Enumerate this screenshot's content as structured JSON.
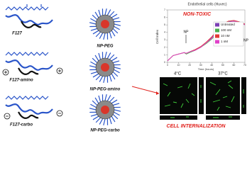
{
  "labels": {
    "polymers": [
      "F127",
      "F127-amino",
      "F127-carbo"
    ],
    "nanoparticles": [
      "NP-PEG",
      "NP-PEG-amino",
      "NP-PEG-carbo"
    ],
    "micro": {
      "temps": [
        "4°C",
        "37°C"
      ],
      "caption": "CELL INTERNALIZATION"
    }
  },
  "chart_data": {
    "type": "line",
    "title": "Endothelial cells (Huvec)",
    "x_label": "Time (hours)",
    "y_label": "Cell Index",
    "annotations": [
      "NON-TOXIC",
      "NP",
      "NP"
    ],
    "x": [
      0,
      5,
      10,
      15,
      17,
      20,
      25,
      30,
      35,
      40,
      45,
      50,
      55,
      60,
      65,
      70
    ],
    "series": [
      {
        "name": "Untreated",
        "color": "#7b3fb5",
        "values": [
          0.2,
          0.9,
          1.1,
          1.3,
          1.2,
          1.4,
          1.7,
          2.1,
          2.6,
          3.3,
          4.2,
          5.0,
          5.4,
          5.6,
          5.4,
          5.1
        ]
      },
      {
        "name": "100 nM",
        "color": "#4caf50",
        "values": [
          0.2,
          0.9,
          1.1,
          1.3,
          1.1,
          1.3,
          1.6,
          2.0,
          2.5,
          3.1,
          3.9,
          4.7,
          5.2,
          5.4,
          5.3,
          5.0
        ]
      },
      {
        "name": "10 nM",
        "color": "#e53935",
        "values": [
          0.2,
          0.9,
          1.1,
          1.3,
          1.2,
          1.4,
          1.7,
          2.1,
          2.7,
          3.4,
          4.3,
          5.1,
          5.5,
          5.6,
          5.4,
          5.1
        ]
      },
      {
        "name": "1 nM",
        "color": "#e040c8",
        "values": [
          0.2,
          0.9,
          1.1,
          1.3,
          1.2,
          1.4,
          1.6,
          2.0,
          2.6,
          3.2,
          4.1,
          4.9,
          5.3,
          5.5,
          5.3,
          5.0
        ]
      }
    ],
    "xlim": [
      0,
      70
    ],
    "xticks": [
      0,
      10,
      20,
      30,
      40,
      50,
      60,
      70
    ],
    "ylim": [
      0,
      7
    ],
    "yticks": [
      0,
      1,
      2,
      3,
      4,
      5,
      6,
      7
    ]
  }
}
